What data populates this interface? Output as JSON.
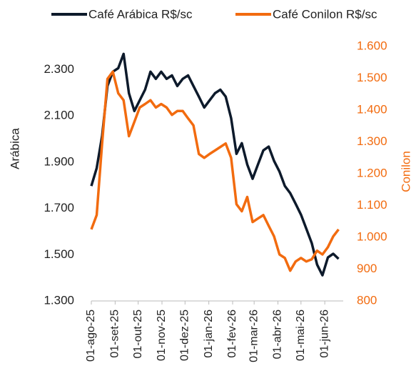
{
  "chart_data": {
    "type": "line",
    "legend": "top",
    "x": [
      "2025-08-01",
      "2025-08-08",
      "2025-08-15",
      "2025-08-22",
      "2025-08-29",
      "2025-09-05",
      "2025-09-12",
      "2025-09-19",
      "2025-09-26",
      "2025-10-03",
      "2025-10-10",
      "2025-10-17",
      "2025-10-24",
      "2025-10-31",
      "2025-11-07",
      "2025-11-14",
      "2025-11-21",
      "2025-11-28",
      "2025-12-05",
      "2025-12-12",
      "2025-12-19",
      "2025-12-26",
      "2026-01-02",
      "2026-01-09",
      "2026-01-16",
      "2026-01-23",
      "2026-01-30",
      "2026-02-06",
      "2026-02-13",
      "2026-02-20",
      "2026-02-27",
      "2026-03-06",
      "2026-03-13",
      "2026-03-20",
      "2026-03-27",
      "2026-04-03",
      "2026-04-10",
      "2026-04-17",
      "2026-04-24",
      "2026-05-01",
      "2026-05-08",
      "2026-05-15",
      "2026-05-22",
      "2026-05-29",
      "2026-06-05",
      "2026-06-12",
      "2026-06-19"
    ],
    "series": [
      {
        "name": "Café Arábica R$/sc",
        "color": "#0d1a2b",
        "axis": "y",
        "values": [
          1797,
          1874,
          2013,
          2229,
          2291,
          2306,
          2368,
          2198,
          2121,
          2167,
          2213,
          2291,
          2260,
          2291,
          2260,
          2275,
          2229,
          2260,
          2275,
          2229,
          2183,
          2136,
          2167,
          2198,
          2213,
          2183,
          2090,
          1936,
          1982,
          1890,
          1828,
          1890,
          1951,
          1967,
          1905,
          1859,
          1797,
          1766,
          1720,
          1673,
          1612,
          1550,
          1457,
          1411,
          1488,
          1504,
          1482
        ]
      },
      {
        "name": "Café Conilon R$/sc",
        "color": "#f26b0f",
        "axis": "y2",
        "values": [
          1025,
          1070,
          1295,
          1498,
          1521,
          1453,
          1431,
          1318,
          1363,
          1408,
          1419,
          1431,
          1408,
          1419,
          1408,
          1385,
          1397,
          1397,
          1374,
          1352,
          1262,
          1250,
          1262,
          1273,
          1284,
          1295,
          1250,
          1104,
          1082,
          1127,
          1048,
          1059,
          1070,
          1036,
          1003,
          946,
          935,
          895,
          924,
          935,
          924,
          931,
          958,
          946,
          969,
          1003,
          1025
        ]
      }
    ],
    "xlim": [
      "2025-08-01",
      "2026-06-25"
    ],
    "xticks": [
      {
        "value": "2025-08-01",
        "label": "01-ago-25"
      },
      {
        "value": "2025-09-01",
        "label": "01-set-25"
      },
      {
        "value": "2025-10-01",
        "label": "01-out-25"
      },
      {
        "value": "2025-11-01",
        "label": "01-nov-25"
      },
      {
        "value": "2025-12-01",
        "label": "01-dez-25"
      },
      {
        "value": "2026-01-01",
        "label": "01-jan-26"
      },
      {
        "value": "2026-02-01",
        "label": "01-fev-26"
      },
      {
        "value": "2026-03-01",
        "label": "01-mar-26"
      },
      {
        "value": "2026-04-01",
        "label": "01-abr-26"
      },
      {
        "value": "2026-05-01",
        "label": "01-mai-26"
      },
      {
        "value": "2026-06-01",
        "label": "01-jun-26"
      }
    ],
    "ylabel": "Arábica",
    "ylim": [
      1300,
      2400
    ],
    "yticks": [
      {
        "value": 1300,
        "label": "1.300"
      },
      {
        "value": 1500,
        "label": "1.500"
      },
      {
        "value": 1700,
        "label": "1.700"
      },
      {
        "value": 1900,
        "label": "1.900"
      },
      {
        "value": 2100,
        "label": "2.100"
      },
      {
        "value": 2300,
        "label": "2.300"
      }
    ],
    "y2label": "Conilon",
    "y2lim": [
      800,
      1600
    ],
    "y2ticks": [
      800,
      900,
      {
        "value": 1000,
        "label": "1.000"
      },
      {
        "value": 1100,
        "label": "1.100"
      },
      {
        "value": 1200,
        "label": "1.200"
      },
      {
        "value": 1300,
        "label": "1.300"
      },
      {
        "value": 1400,
        "label": "1.400"
      },
      {
        "value": 1500,
        "label": "1.500"
      },
      {
        "value": 1600,
        "label": "1.600"
      }
    ],
    "grid": false
  }
}
